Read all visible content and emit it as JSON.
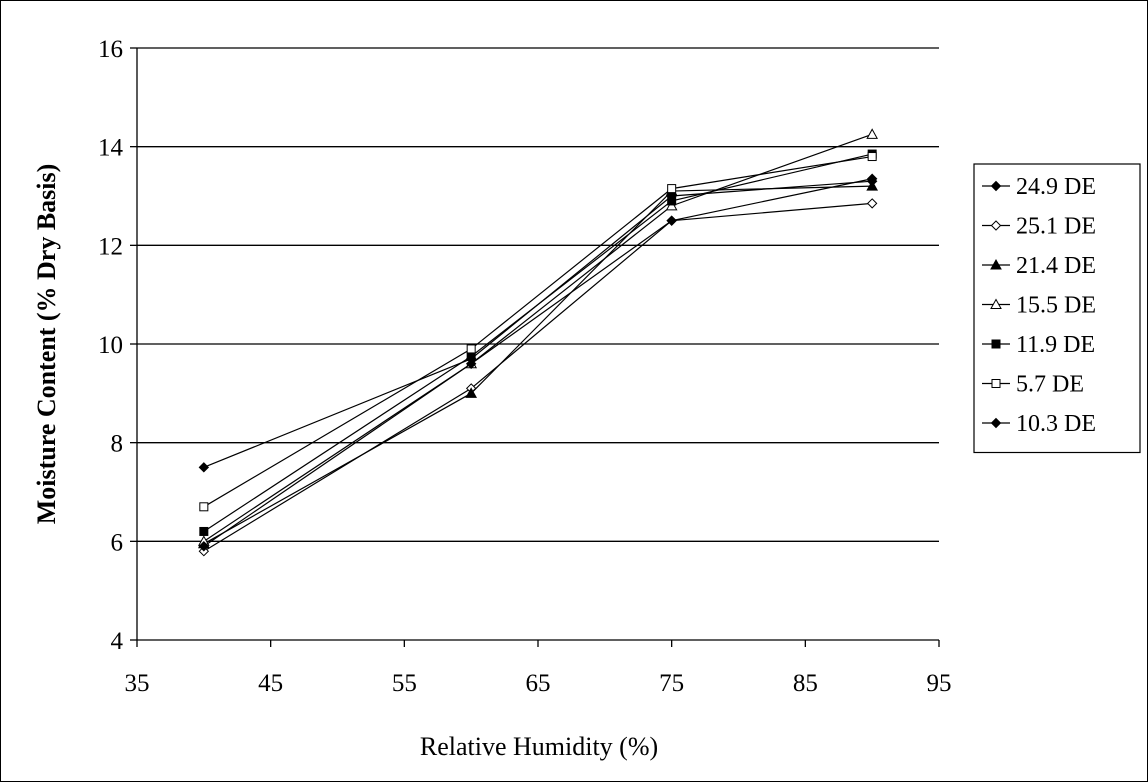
{
  "chart_data": {
    "type": "line",
    "title": "",
    "xlabel": "Relative Humidity (%)",
    "ylabel": "Moisture Content (% Dry Basis)",
    "xlim": [
      35,
      95
    ],
    "ylim": [
      4,
      16
    ],
    "x_ticks": [
      35,
      45,
      55,
      65,
      75,
      85,
      95
    ],
    "y_ticks": [
      4,
      6,
      8,
      10,
      12,
      14,
      16
    ],
    "grid": "horizontal major gridlines",
    "legend_position": "right",
    "x": [
      40,
      60,
      75,
      90
    ],
    "series": [
      {
        "name": "24.9 DE",
        "marker": "diamond-filled",
        "values": [
          7.5,
          9.7,
          13.0,
          13.3
        ]
      },
      {
        "name": "25.1 DE",
        "marker": "diamond-open",
        "values": [
          5.8,
          9.1,
          12.5,
          12.85
        ]
      },
      {
        "name": "21.4 DE",
        "marker": "triangle-filled",
        "values": [
          5.95,
          9.0,
          13.1,
          13.2
        ]
      },
      {
        "name": "15.5 DE",
        "marker": "triangle-open",
        "values": [
          6.0,
          9.6,
          12.8,
          14.25
        ]
      },
      {
        "name": "11.9 DE",
        "marker": "square-filled",
        "values": [
          6.2,
          9.75,
          12.9,
          13.85
        ]
      },
      {
        "name": "5.7 DE",
        "marker": "square-open",
        "values": [
          6.7,
          9.9,
          13.15,
          13.8
        ]
      },
      {
        "name": "10.3 DE",
        "marker": "diamond-filled",
        "values": [
          5.9,
          9.6,
          12.5,
          13.35
        ]
      }
    ]
  }
}
